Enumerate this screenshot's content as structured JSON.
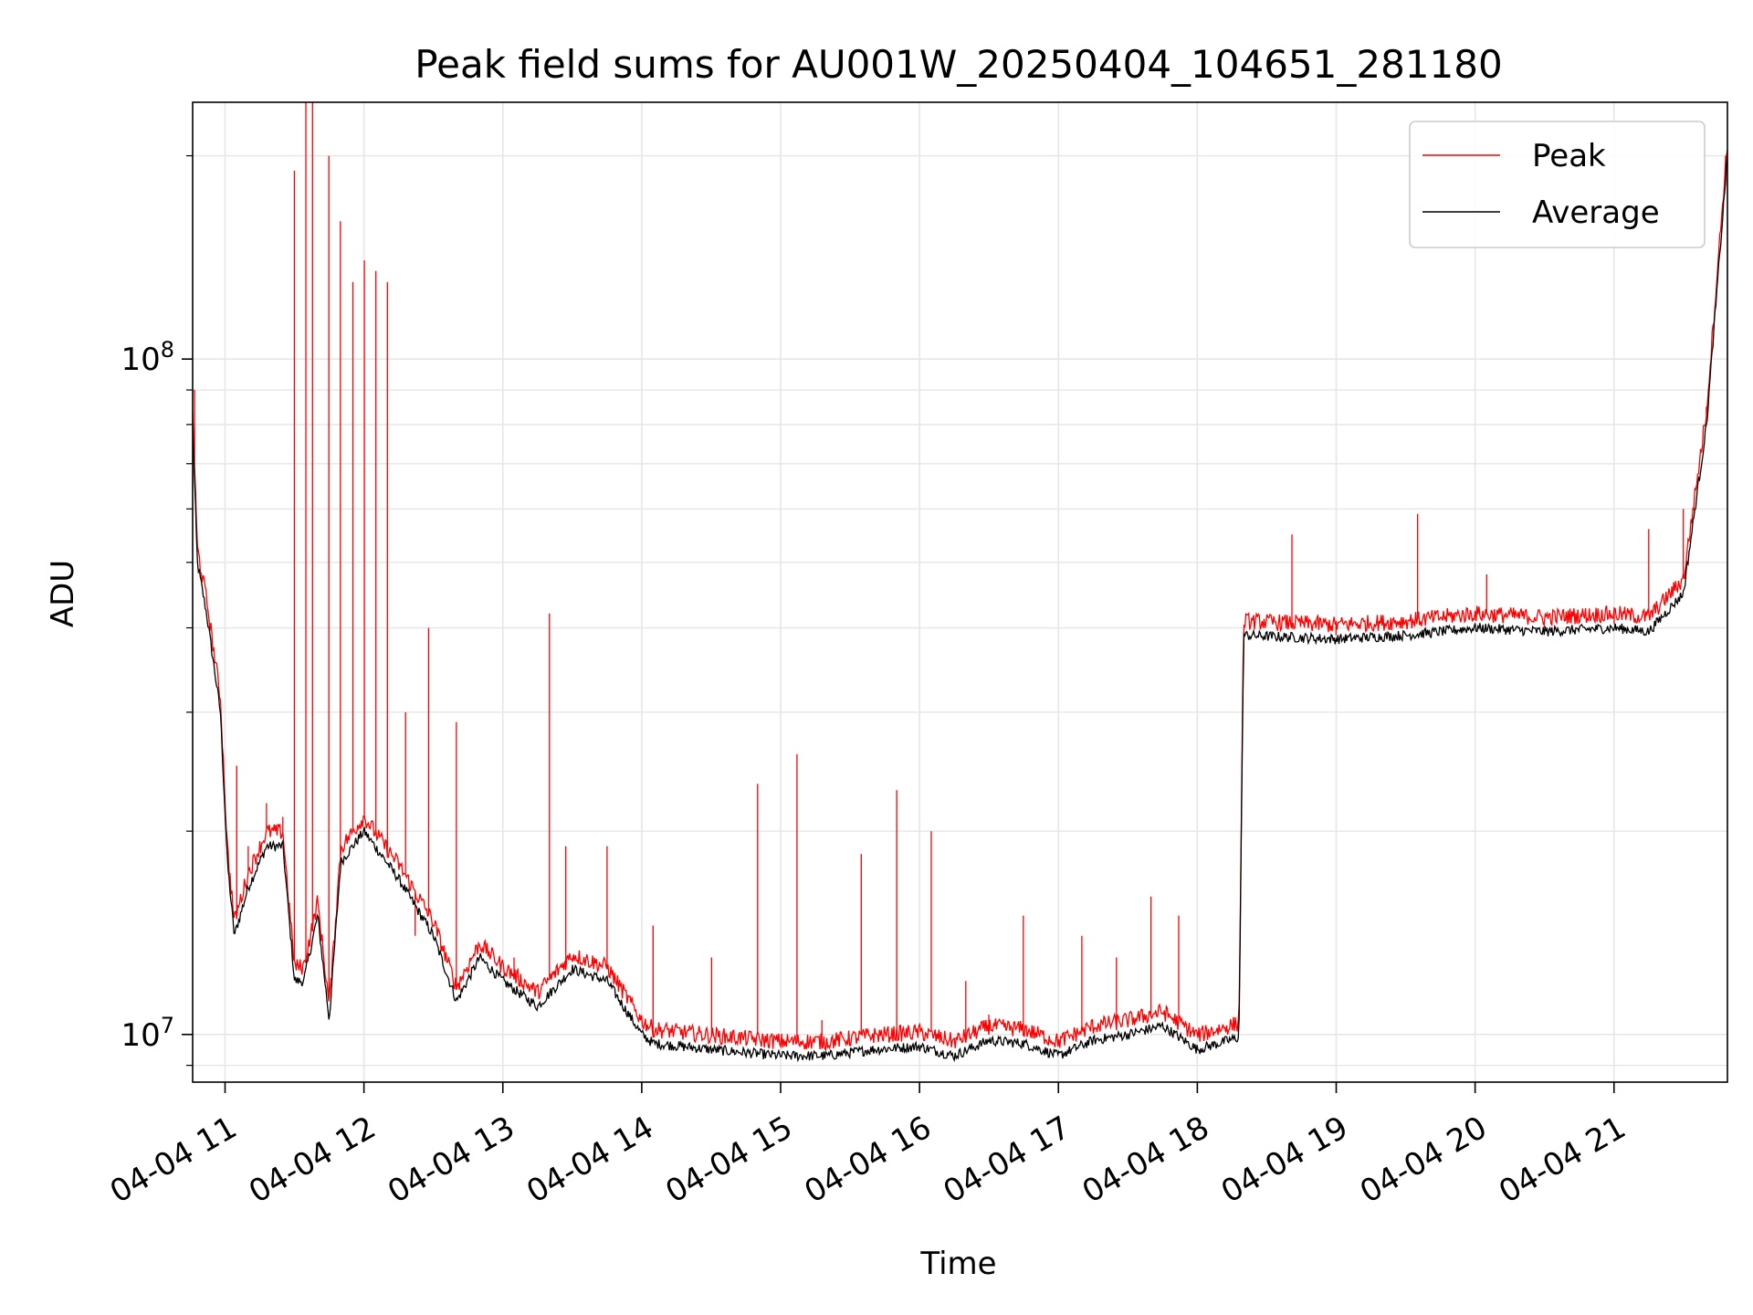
{
  "chart_data": {
    "type": "line",
    "title": "Peak field sums for AU001W_20250404_104651_281180",
    "xlabel": "Time",
    "ylabel": "ADU",
    "yscale": "log",
    "grid": true,
    "legend_position": "top-right",
    "xlim": [
      "2025-04-04 10:46",
      "2025-04-04 21:49"
    ],
    "ylim": [
      8500000,
      240000000
    ],
    "x_ticks": [
      "04-04 11",
      "04-04 12",
      "04-04 13",
      "04-04 14",
      "04-04 15",
      "04-04 16",
      "04-04 17",
      "04-04 18",
      "04-04 19",
      "04-04 20",
      "04-04 21"
    ],
    "y_ticks": [
      {
        "value": 10000000,
        "base": "10",
        "exp": "7"
      },
      {
        "value": 100000000,
        "base": "10",
        "exp": "8"
      }
    ],
    "series": [
      {
        "name": "Peak",
        "color": "#ff0000",
        "time": [
          "2025-04-04 10:47",
          "2025-04-04 11:05",
          "2025-04-04 11:10",
          "2025-04-04 11:18",
          "2025-04-04 11:25",
          "2025-04-04 11:30",
          "2025-04-04 11:35",
          "2025-04-04 11:38",
          "2025-04-04 11:45",
          "2025-04-04 11:50",
          "2025-04-04 11:55",
          "2025-04-04 12:00",
          "2025-04-04 12:05",
          "2025-04-04 12:10",
          "2025-04-04 12:18",
          "2025-04-04 12:22",
          "2025-04-04 12:28",
          "2025-04-04 12:40",
          "2025-04-04 13:05",
          "2025-04-04 13:20",
          "2025-04-04 13:27",
          "2025-04-04 13:45",
          "2025-04-04 14:05",
          "2025-04-04 14:30",
          "2025-04-04 14:50",
          "2025-04-04 15:07",
          "2025-04-04 15:18",
          "2025-04-04 15:35",
          "2025-04-04 15:50",
          "2025-04-04 16:05",
          "2025-04-04 16:20",
          "2025-04-04 16:30",
          "2025-04-04 16:45",
          "2025-04-04 17:10",
          "2025-04-04 17:25",
          "2025-04-04 17:40",
          "2025-04-04 17:52",
          "2025-04-04 18:00",
          "2025-04-04 18:20",
          "2025-04-04 18:41",
          "2025-04-04 19:00",
          "2025-04-04 19:35",
          "2025-04-04 20:05",
          "2025-04-04 20:30",
          "2025-04-04 21:00",
          "2025-04-04 21:15",
          "2025-04-04 21:30",
          "2025-04-04 21:40",
          "2025-04-04 21:48"
        ],
        "values": [
          90000000,
          25000000,
          19000000,
          22000000,
          21000000,
          190000000,
          240000000,
          240000000,
          200000000,
          160000000,
          130000000,
          140000000,
          135000000,
          130000000,
          30000000,
          14000000,
          40000000,
          29000000,
          13000000,
          42000000,
          19000000,
          19000000,
          14500000,
          13000000,
          23500000,
          26000000,
          10500000,
          18500000,
          23000000,
          20000000,
          12000000,
          10700000,
          15000000,
          14000000,
          13000000,
          16000000,
          15000000,
          10000000,
          40000000,
          55000000,
          39000000,
          59000000,
          48000000,
          40000000,
          40500000,
          56000000,
          60000000,
          85000000,
          200000000
        ]
      },
      {
        "name": "Average",
        "color": "#000000",
        "time": [
          "2025-04-04 10:46",
          "2025-04-04 10:48",
          "2025-04-04 10:52",
          "2025-04-04 10:58",
          "2025-04-04 11:01",
          "2025-04-04 11:04",
          "2025-04-04 11:10",
          "2025-04-04 11:18",
          "2025-04-04 11:25",
          "2025-04-04 11:30",
          "2025-04-04 11:34",
          "2025-04-04 11:40",
          "2025-04-04 11:45",
          "2025-04-04 11:50",
          "2025-04-04 12:00",
          "2025-04-04 12:15",
          "2025-04-04 12:30",
          "2025-04-04 12:40",
          "2025-04-04 12:50",
          "2025-04-04 13:00",
          "2025-04-04 13:15",
          "2025-04-04 13:30",
          "2025-04-04 13:45",
          "2025-04-04 14:00",
          "2025-04-04 14:05",
          "2025-04-04 14:30",
          "2025-04-04 15:00",
          "2025-04-04 15:20",
          "2025-04-04 15:40",
          "2025-04-04 16:00",
          "2025-04-04 16:15",
          "2025-04-04 16:30",
          "2025-04-04 16:45",
          "2025-04-04 17:00",
          "2025-04-04 17:15",
          "2025-04-04 17:30",
          "2025-04-04 17:45",
          "2025-04-04 18:00",
          "2025-04-04 18:18",
          "2025-04-04 18:20",
          "2025-04-04 19:00",
          "2025-04-04 19:30",
          "2025-04-04 20:00",
          "2025-04-04 20:30",
          "2025-04-04 21:00",
          "2025-04-04 21:15",
          "2025-04-04 21:30",
          "2025-04-04 21:40",
          "2025-04-04 21:49"
        ],
        "values": [
          80000000,
          50000000,
          42000000,
          30000000,
          18000000,
          14000000,
          16500000,
          19000000,
          19000000,
          12000000,
          12000000,
          15000000,
          10500000,
          18000000,
          20000000,
          17000000,
          14000000,
          11200000,
          13000000,
          12000000,
          11000000,
          12500000,
          12000000,
          10000000,
          9700000,
          9500000,
          9300000,
          9300000,
          9500000,
          9600000,
          9300000,
          9800000,
          9700000,
          9300000,
          9800000,
          10000000,
          10300000,
          9500000,
          9900000,
          39000000,
          38500000,
          39000000,
          40000000,
          39500000,
          40000000,
          39500000,
          45000000,
          80000000,
          200000000
        ]
      }
    ]
  }
}
